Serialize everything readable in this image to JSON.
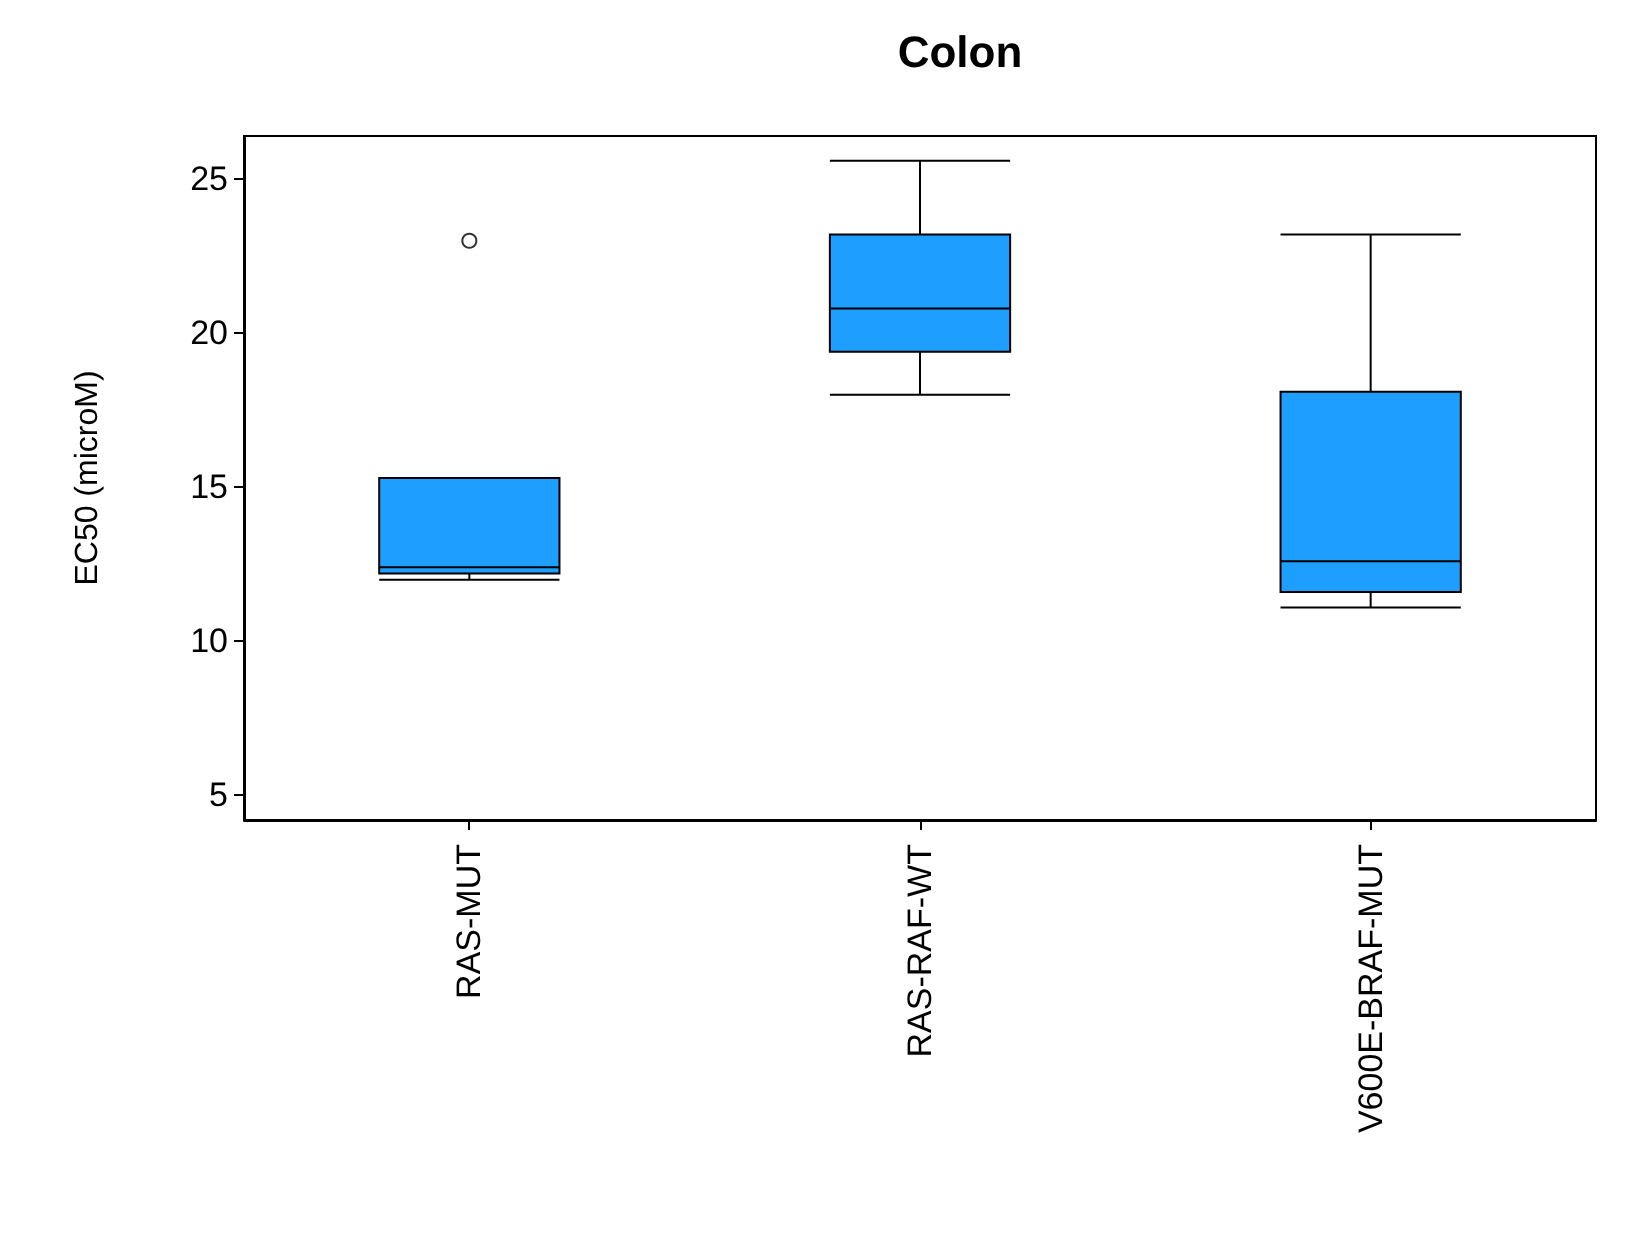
{
  "chart_data": {
    "type": "box",
    "title": "Colon",
    "ylabel": "EC50 (microM)",
    "categories": [
      "RAS-MUT",
      "RAS-RAF-WT",
      "V600E-BRAF-MUT"
    ],
    "color": "#1e9fff",
    "boxes": [
      {
        "low": 12.0,
        "q1": 12.2,
        "median": 12.4,
        "q3": 15.3,
        "high": 15.3,
        "outliers": [
          23.0
        ]
      },
      {
        "low": 18.0,
        "q1": 19.4,
        "median": 20.8,
        "q3": 23.2,
        "high": 25.6
      },
      {
        "low": 11.1,
        "q1": 11.6,
        "median": 12.6,
        "q3": 18.1,
        "high": 23.2
      }
    ],
    "ylim": [
      4.2,
      26.4
    ],
    "yticks": [
      5,
      10,
      15,
      20,
      25
    ],
    "grid": false
  }
}
